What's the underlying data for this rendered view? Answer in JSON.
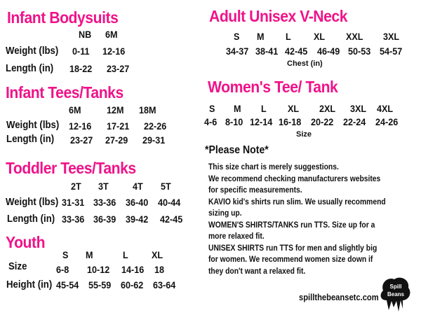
{
  "infant_bodysuits": {
    "title": "Infant Bodysuits",
    "sizes": [
      "NB",
      "6M"
    ],
    "weight_label": "Weight (lbs)",
    "weight": [
      "0-11",
      "12-16"
    ],
    "length_label": "Length (in)",
    "length": [
      "18-22",
      "23-27"
    ]
  },
  "infant_tees": {
    "title": "Infant Tees/Tanks",
    "sizes": [
      "6M",
      "12M",
      "18M"
    ],
    "weight_label": "Weight (lbs)",
    "weight": [
      "12-16",
      "17-21",
      "22-26"
    ],
    "length_label": "Length (in)",
    "length": [
      "23-27",
      "27-29",
      "29-31"
    ]
  },
  "toddler_tees": {
    "title": "Toddler  Tees/Tanks",
    "sizes": [
      "2T",
      "3T",
      "4T",
      "5T"
    ],
    "weight_label": "Weight (lbs)",
    "weight": [
      "31-31",
      "33-36",
      "36-40",
      "40-44"
    ],
    "length_label": "Length (in)",
    "length": [
      "33-36",
      "36-39",
      "39-42",
      "42-45"
    ]
  },
  "youth": {
    "title": "Youth",
    "sizes": [
      "S",
      "M",
      "L",
      "XL"
    ],
    "size_label": "Size",
    "size_values": [
      "6-8",
      "10-12",
      "14-16",
      "18"
    ],
    "height_label": "Height (in)",
    "height": [
      "45-54",
      "55-59",
      "60-62",
      "63-64"
    ]
  },
  "adult_unisex": {
    "title": "Adult Unisex V-Neck",
    "sizes": [
      "S",
      "M",
      "L",
      "XL",
      "XXL",
      "3XL"
    ],
    "chest": [
      "34-37",
      "38-41",
      "42-45",
      "46-49",
      "50-53",
      "54-57"
    ],
    "chest_label": "Chest (in)"
  },
  "womens": {
    "title": "Women's Tee/ Tank",
    "sizes": [
      "S",
      "M",
      "L",
      "XL",
      "2XL",
      "3XL",
      "4XL"
    ],
    "values": [
      "4-6",
      "8-10",
      "12-14",
      "16-18",
      "20-22",
      "22-24",
      "24-26"
    ],
    "values_label": "Size"
  },
  "note": {
    "title": "*Please Note*",
    "lines": [
      "This size chart is merely suggestions.",
      "We recommend checking manufacturers websites",
      "for specific measurements.",
      "KAVIO kid's shirts run slim. We usually recommend",
      "sizing up.",
      "WOMEN'S SHIRTS/TANKS run TTS. Size up for a",
      "more relaxed fit.",
      "UNISEX SHIRTS run TTS for men and slightly big",
      "for women. We recommend women size down if",
      "they don't want a relaxed fit."
    ]
  },
  "footer": {
    "website": "spillthebeansetc.com",
    "logo_text": "Spill the Beans"
  },
  "colors": {
    "heading": "#f0138a",
    "text": "#111111"
  }
}
